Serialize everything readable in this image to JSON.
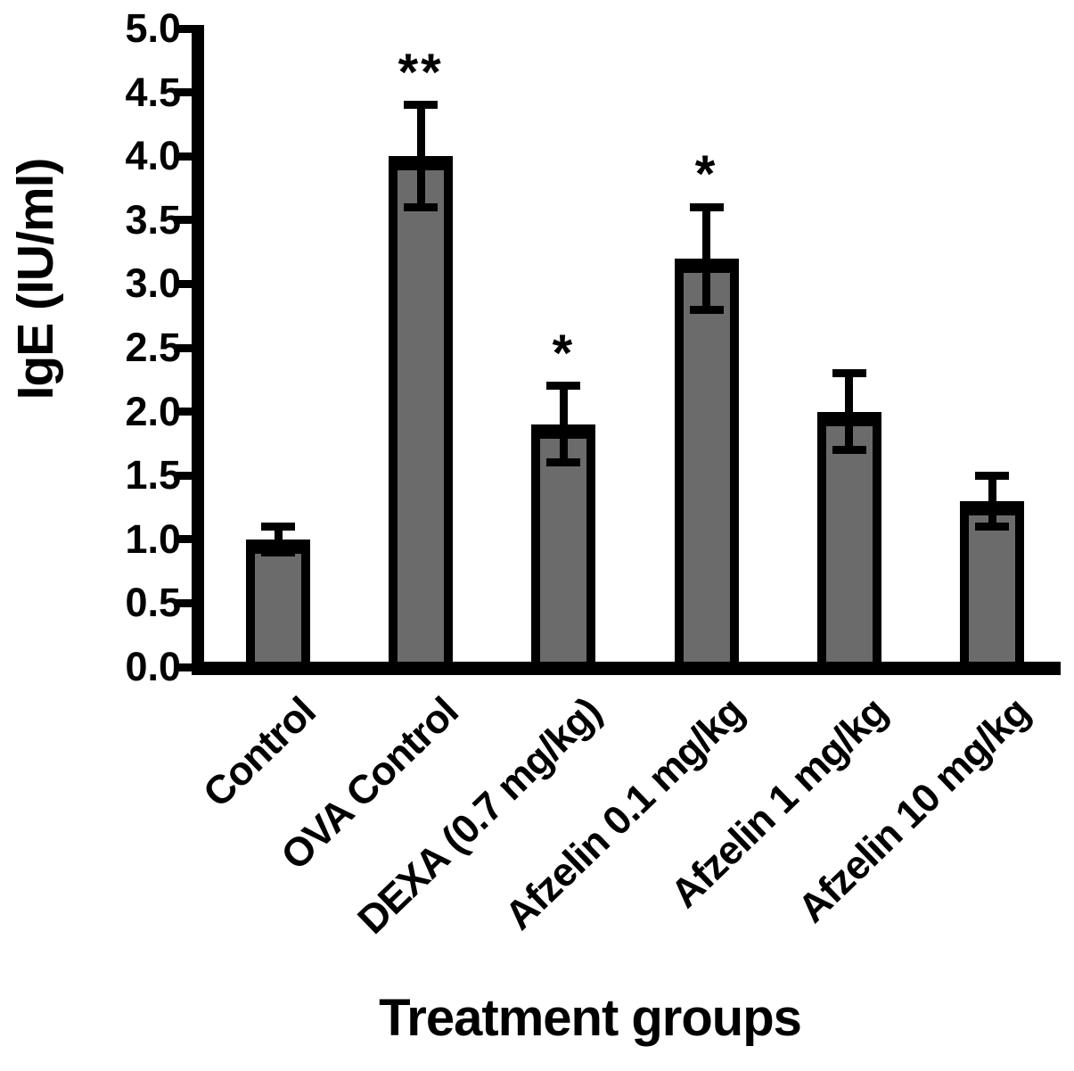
{
  "chart_data": {
    "type": "bar",
    "title": "",
    "xlabel": "Treatment groups",
    "ylabel": "IgE (IU/ml)",
    "ylim": [
      0.0,
      5.0
    ],
    "ytick_labels": [
      "0.0",
      "0.5",
      "1.0",
      "1.5",
      "2.0",
      "2.5",
      "3.0",
      "3.5",
      "4.0",
      "4.5",
      "5.0"
    ],
    "categories": [
      "Control",
      "OVA Control",
      "DEXA (0.7 mg/kg)",
      "Afzelin 0.1 mg/kg",
      "Afzelin 1 mg/kg",
      "Afzelin 10 mg/kg"
    ],
    "values": [
      1.0,
      4.0,
      1.9,
      3.2,
      2.0,
      1.3
    ],
    "error_bars": [
      0.1,
      0.4,
      0.3,
      0.4,
      0.3,
      0.2
    ],
    "significance": [
      "",
      "**",
      "*",
      "*",
      "",
      ""
    ],
    "grid": false,
    "legend": null,
    "bar_fill_color": "#6b6b6b",
    "bar_border_color": "#000000",
    "axis_color": "#000000",
    "text_color": "#000000"
  }
}
